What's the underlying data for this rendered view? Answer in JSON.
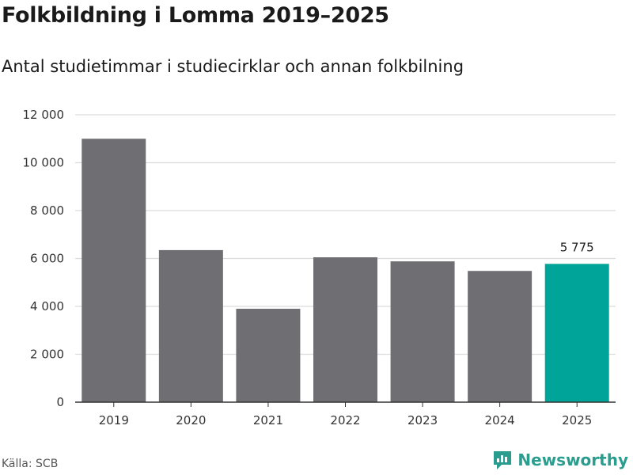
{
  "title": "Folkbildning i Lomma 2019–2025",
  "subtitle": "Antal studietimmar i studiecirklar och annan folkbilning",
  "source": "Källa: SCB",
  "brand": "Newsworthy",
  "colors": {
    "bar": "#6e6e73",
    "highlight": "#00a499",
    "grid": "#dcdcdc",
    "axis": "#333333",
    "brand": "#2a9d8f"
  },
  "chart_data": {
    "type": "bar",
    "title": "Folkbildning i Lomma 2019–2025",
    "subtitle": "Antal studietimmar i studiecirklar och annan folkbilning",
    "xlabel": "",
    "ylabel": "",
    "categories": [
      "2019",
      "2020",
      "2021",
      "2022",
      "2023",
      "2024",
      "2025"
    ],
    "values": [
      11000,
      6350,
      3900,
      6050,
      5880,
      5480,
      5775
    ],
    "highlight_index": 6,
    "data_labels": [
      {
        "index": 6,
        "text": "5 775"
      }
    ],
    "ylim": [
      0,
      12000
    ],
    "yticks": [
      0,
      2000,
      4000,
      6000,
      8000,
      10000,
      12000
    ],
    "ytick_labels": [
      "0",
      "2 000",
      "4 000",
      "6 000",
      "8 000",
      "10 000",
      "12 000"
    ],
    "grid": true
  }
}
